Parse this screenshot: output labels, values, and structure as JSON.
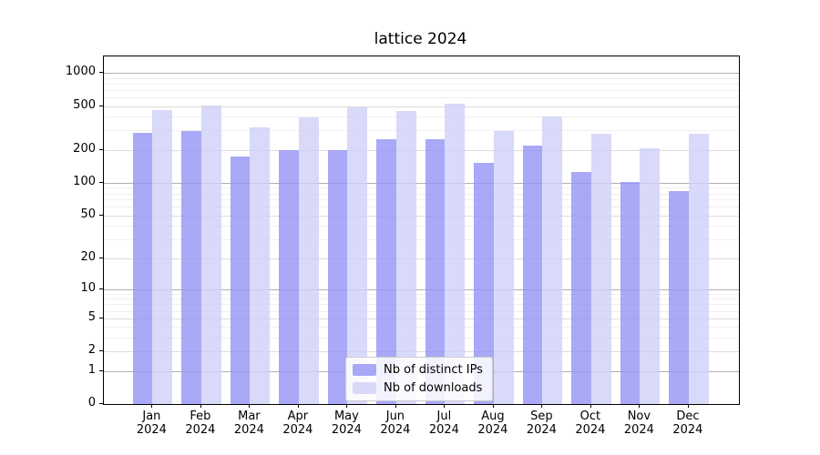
{
  "figure": {
    "title": "lattice 2024"
  },
  "chart_data": {
    "type": "bar",
    "title": "lattice 2024",
    "categories": [
      "Jan",
      "Feb",
      "Mar",
      "Apr",
      "May",
      "Jun",
      "Jul",
      "Aug",
      "Sep",
      "Oct",
      "Nov",
      "Dec"
    ],
    "category_year": "2024",
    "series": [
      {
        "name": "Nb of distinct IPs",
        "color": "rgba(148,148,245,0.8)",
        "apparent_color": "#a9a9f6",
        "values": [
          284,
          297,
          175,
          198,
          200,
          249,
          252,
          152,
          218,
          125,
          101,
          84
        ]
      },
      {
        "name": "Nb of downloads",
        "color": "rgba(208,208,248,0.8)",
        "apparent_color": "#d9d9f8",
        "values": [
          458,
          505,
          318,
          391,
          488,
          453,
          528,
          294,
          401,
          282,
          206,
          279
        ]
      }
    ],
    "yscale": "log1p",
    "yticks": [
      0,
      1,
      2,
      5,
      10,
      20,
      50,
      100,
      200,
      500,
      1000
    ],
    "major_gridline_values": [
      1,
      10,
      100,
      1000
    ],
    "minor_gridline_values": [
      3,
      4,
      6,
      7,
      8,
      9,
      30,
      40,
      60,
      70,
      80,
      90,
      300,
      400,
      600,
      700,
      800,
      900
    ],
    "ylim": [
      0,
      1400
    ],
    "xlabel": "",
    "ylabel": "",
    "grid": "on",
    "legend_position": "lower center"
  }
}
